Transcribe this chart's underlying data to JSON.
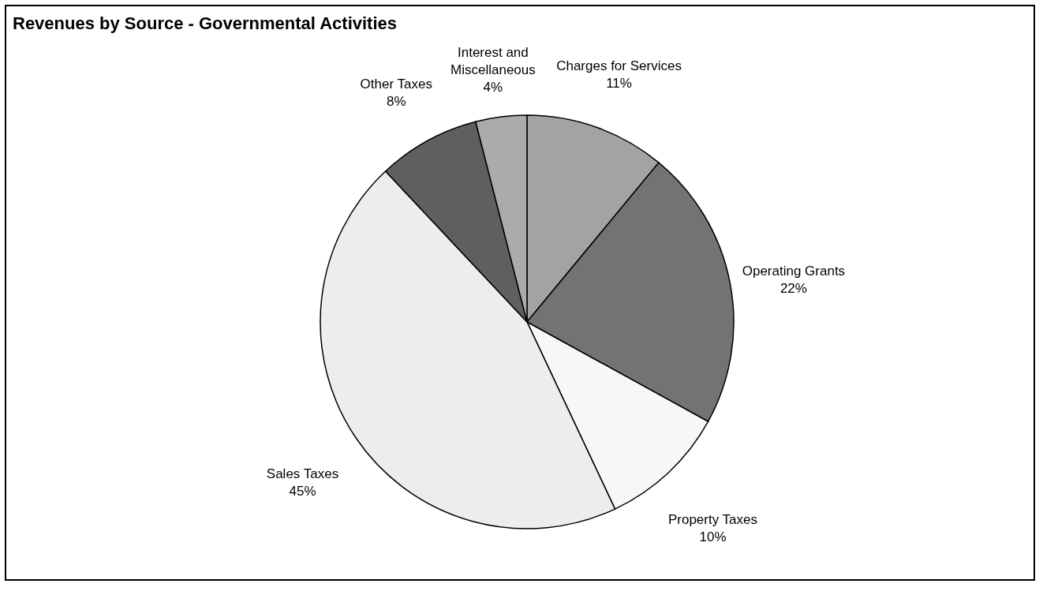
{
  "chart_data": {
    "type": "pie",
    "title": "Revenues by Source - Governmental Activities",
    "categories": [
      "Charges for Services",
      "Operating Grants",
      "Property Taxes",
      "Sales Taxes",
      "Other Taxes",
      "Interest and Miscellaneous"
    ],
    "values": [
      11,
      22,
      10,
      45,
      8,
      4
    ],
    "colors": [
      "#a3a3a3",
      "#737373",
      "#f7f7f7",
      "#ededed",
      "#5f5f5f",
      "#ababab"
    ],
    "value_labels": [
      "11%",
      "22%",
      "10%",
      "45%",
      "8%",
      "4%"
    ],
    "legend": false
  }
}
